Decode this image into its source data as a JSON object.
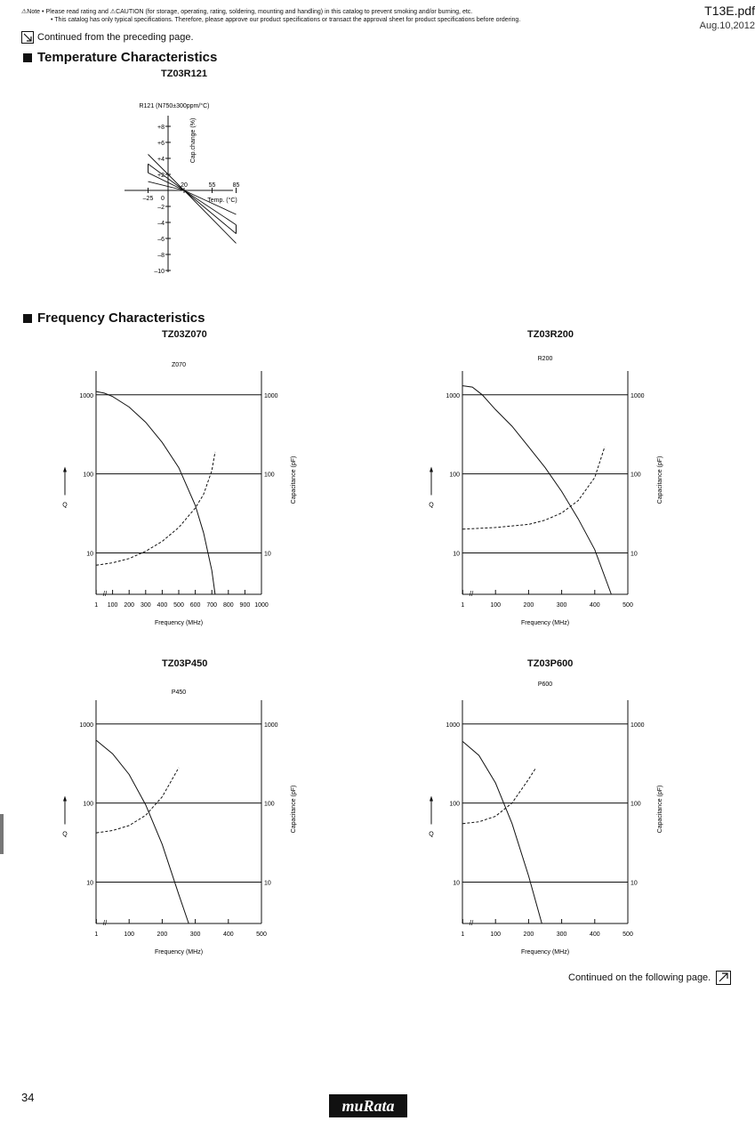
{
  "header": {
    "note_label": "⚠Note",
    "note_line1": "• Please read rating and ⚠CAUTION (for storage, operating, rating, soldering, mounting and handling) in this catalog to prevent smoking and/or burning, etc.",
    "note_line2": "• This catalog has only typical specifications. Therefore, please approve our product specifications or transact the approval sheet for product specifications before ordering.",
    "file": "T13E.pdf",
    "date": "Aug.10,2012",
    "continued_from": "Continued from the preceding page."
  },
  "sections": {
    "temperature": "Temperature Characteristics",
    "frequency": "Frequency Characteristics"
  },
  "footer": {
    "continued_next": "Continued on the following page.",
    "page_number": "34",
    "logo": "muRata"
  },
  "chart_data": [
    {
      "type": "line",
      "model": "TZ03R121",
      "title": "R121 (N750±300ppm/°C)",
      "xlabel": "Temp. (°C)",
      "ylabel": "Cap.change (%)",
      "x_ticks": [
        "–25",
        "0",
        "20",
        "55",
        "85"
      ],
      "y_ticks": [
        "+8",
        "+6",
        "+4",
        "+2",
        "0",
        "–2",
        "–4",
        "–6",
        "–8",
        "–10"
      ],
      "xlim": [
        -40,
        105
      ],
      "ylim": [
        -10,
        9
      ],
      "series": [
        {
          "x": [
            -25,
            20,
            85
          ],
          "y": [
            3.3,
            0,
            -5.4
          ]
        },
        {
          "x": [
            -25,
            20,
            85
          ],
          "y": [
            2.2,
            0,
            -4.3
          ]
        },
        {
          "x": [
            -25,
            20,
            85
          ],
          "y": [
            1.1,
            0,
            -3.0
          ]
        },
        {
          "x": [
            -25,
            20,
            85
          ],
          "y": [
            4.5,
            0,
            -6.6
          ]
        }
      ]
    },
    {
      "type": "line",
      "model": "TZ03Z070",
      "title": "Z070",
      "xlabel": "Frequency (MHz)",
      "ylabel_left": "Q",
      "ylabel_right": "Capacitance (pF)",
      "x_ticks": [
        "1",
        "100",
        "200",
        "300",
        "400",
        "500",
        "600",
        "700",
        "800",
        "900",
        "1000"
      ],
      "xlim": [
        1,
        1000
      ],
      "y_ticks": [
        "10",
        "100",
        "1000"
      ],
      "ylim": [
        3,
        2000
      ],
      "series": [
        {
          "style": "solid",
          "x": [
            1,
            50,
            100,
            200,
            300,
            400,
            500,
            600,
            650,
            700,
            720
          ],
          "y": [
            1100,
            1050,
            950,
            700,
            450,
            250,
            120,
            40,
            18,
            6,
            3
          ]
        },
        {
          "style": "dashed",
          "x": [
            1,
            100,
            200,
            300,
            400,
            500,
            600,
            650,
            700,
            720
          ],
          "y": [
            7,
            7.5,
            8.5,
            10.5,
            14,
            21,
            37,
            55,
            110,
            190
          ]
        }
      ]
    },
    {
      "type": "line",
      "model": "TZ03R200",
      "title": "R200",
      "xlabel": "Frequency (MHz)",
      "ylabel_left": "Q",
      "ylabel_right": "Capacitance (pF)",
      "x_ticks": [
        "1",
        "100",
        "200",
        "300",
        "400",
        "500"
      ],
      "xlim": [
        1,
        500
      ],
      "y_ticks": [
        "10",
        "100",
        "1000"
      ],
      "ylim": [
        3,
        2000
      ],
      "series": [
        {
          "style": "solid",
          "x": [
            1,
            30,
            60,
            100,
            150,
            200,
            250,
            300,
            350,
            400,
            450
          ],
          "y": [
            1300,
            1250,
            1000,
            650,
            400,
            220,
            120,
            60,
            27,
            11,
            3
          ]
        },
        {
          "style": "dashed",
          "x": [
            1,
            100,
            200,
            250,
            300,
            350,
            400,
            430
          ],
          "y": [
            20,
            21,
            23,
            26,
            32,
            46,
            90,
            220
          ]
        }
      ]
    },
    {
      "type": "line",
      "model": "TZ03P450",
      "title": "P450",
      "xlabel": "Frequency (MHz)",
      "ylabel_left": "Q",
      "ylabel_right": "Capacitance (pF)",
      "x_ticks": [
        "1",
        "100",
        "200",
        "300",
        "400",
        "500"
      ],
      "xlim": [
        1,
        500
      ],
      "y_ticks": [
        "10",
        "100",
        "1000"
      ],
      "ylim": [
        3,
        2000
      ],
      "series": [
        {
          "style": "solid",
          "x": [
            1,
            50,
            100,
            150,
            200,
            250,
            280
          ],
          "y": [
            620,
            420,
            230,
            95,
            30,
            7,
            3
          ]
        },
        {
          "style": "dashed",
          "x": [
            1,
            50,
            100,
            150,
            200,
            250
          ],
          "y": [
            42,
            45,
            52,
            70,
            120,
            280
          ]
        }
      ]
    },
    {
      "type": "line",
      "model": "TZ03P600",
      "title": "P600",
      "xlabel": "Frequency (MHz)",
      "ylabel_left": "Q",
      "ylabel_right": "Capacitance (pF)",
      "x_ticks": [
        "1",
        "100",
        "200",
        "300",
        "400",
        "500"
      ],
      "xlim": [
        1,
        500
      ],
      "y_ticks": [
        "10",
        "100",
        "1000"
      ],
      "ylim": [
        3,
        2000
      ],
      "series": [
        {
          "style": "solid",
          "x": [
            1,
            50,
            100,
            150,
            200,
            240
          ],
          "y": [
            600,
            400,
            180,
            55,
            12,
            3
          ]
        },
        {
          "style": "dashed",
          "x": [
            1,
            50,
            100,
            150,
            200,
            220
          ],
          "y": [
            55,
            58,
            68,
            100,
            200,
            270
          ]
        }
      ]
    }
  ]
}
